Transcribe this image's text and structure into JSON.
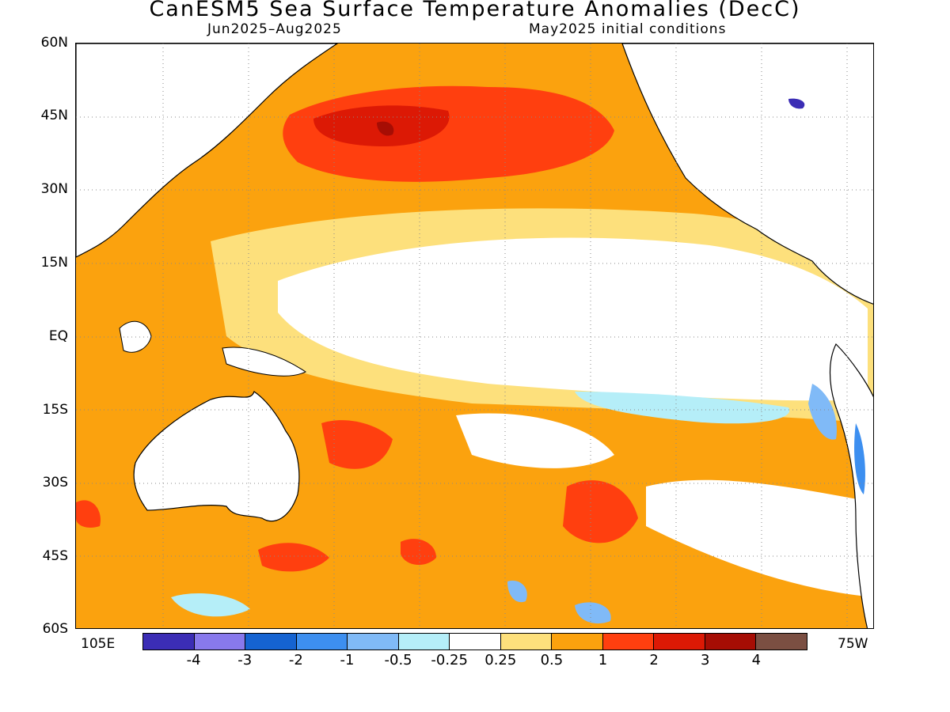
{
  "title": "CanESM5 Sea Surface Temperature Anomalies (DecC)",
  "subtitle_left": "Jun2025–Aug2025",
  "subtitle_right": "May2025 initial conditions",
  "lat_labels": [
    "60N",
    "45N",
    "30N",
    "15N",
    "EQ",
    "15S",
    "30S",
    "45S",
    "60S"
  ],
  "lon_labels": {
    "left": "105E",
    "right": "75W"
  },
  "colorbar": {
    "colors": [
      "#3b2db5",
      "#8879ec",
      "#1563d1",
      "#3d8ff0",
      "#80baf7",
      "#b5eef8",
      "#ffffff",
      "#fde07c",
      "#fba20e",
      "#ff3f0f",
      "#dc1905",
      "#a60d04",
      "#7b4f42"
    ],
    "labels": [
      "-4",
      "-3",
      "-2",
      "-1",
      "-0.5",
      "-0.25",
      "0.25",
      "0.5",
      "1",
      "2",
      "3",
      "4"
    ]
  },
  "palette": {
    "warm1": "#fde07c",
    "warm2": "#fba20e",
    "warm3": "#ff3f0f",
    "warm4": "#dc1905",
    "warm5": "#a60d04",
    "cool1": "#b5eef8",
    "cool2": "#80baf7",
    "cool3": "#3d8ff0",
    "cool4": "#1563d1",
    "cool5": "#3b2db5"
  }
}
